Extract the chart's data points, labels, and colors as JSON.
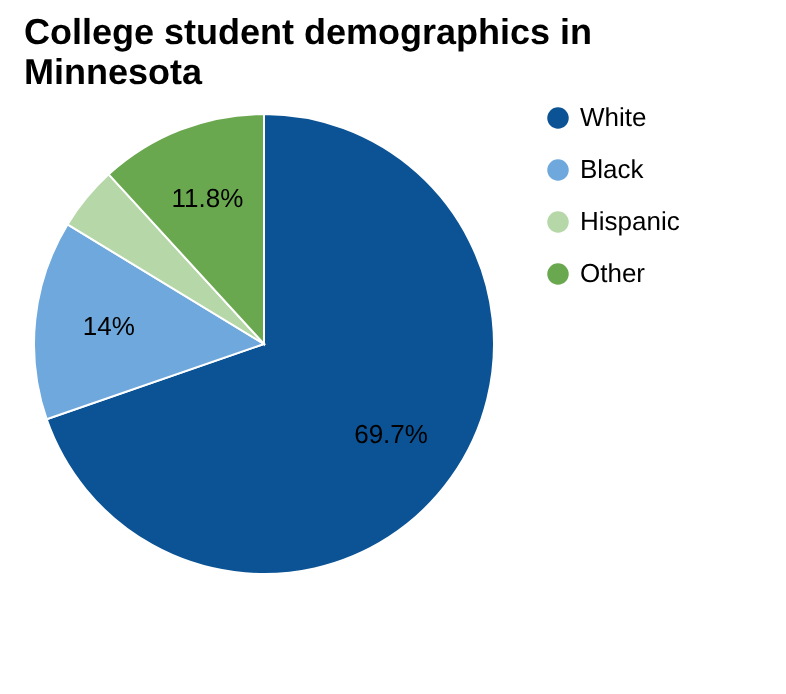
{
  "chart_data": {
    "type": "pie",
    "title": "College student demographics in Minnesota",
    "categories": [
      "White",
      "Black",
      "Hispanic",
      "Other"
    ],
    "values": [
      69.7,
      14,
      4.5,
      11.8
    ],
    "value_labels": [
      "69.7%",
      "14%",
      null,
      "11.8%"
    ],
    "colors": [
      "#0b5394",
      "#6fa8dc",
      "#b6d7a8",
      "#6aa84f"
    ],
    "legend": "top right"
  }
}
